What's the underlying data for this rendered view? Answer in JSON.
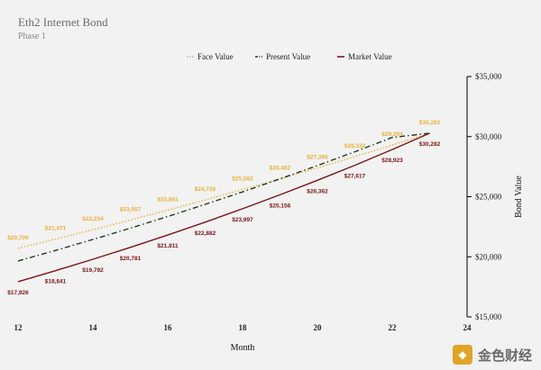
{
  "title": "Eth2 Internet Bond",
  "subtitle": "Phase 1",
  "watermark": "金色财经",
  "chart_data": {
    "type": "line",
    "title": "Eth2 Internet Bond",
    "subtitle": "Phase 1",
    "xlabel": "Month",
    "ylabel": "Bond Value",
    "xlim": [
      12,
      24
    ],
    "ylim": [
      15000,
      35000
    ],
    "x_ticks": [
      "12",
      "14",
      "16",
      "18",
      "20",
      "22",
      "24"
    ],
    "y_ticks": [
      "$15,000",
      "$20,000",
      "$25,000",
      "$30,000",
      "$35,000"
    ],
    "grid": false,
    "legend_position": "top-center",
    "x": [
      12,
      13,
      14,
      15,
      16,
      17,
      18,
      19,
      20,
      21,
      22,
      23
    ],
    "series": [
      {
        "name": "Face Value",
        "color": "#e8b13a",
        "style": "dotted",
        "values": [
          20706,
          21471,
          22254,
          23057,
          23881,
          24726,
          25592,
          26482,
          27395,
          28332,
          29294,
          30282
        ],
        "labels": [
          "$20,706",
          "$21,471",
          "$22,254",
          "$23,057",
          "$23,881",
          "$24,726",
          "$25,592",
          "$26,482",
          "$27,395",
          "$28,332",
          "$29,294",
          "$30,282"
        ]
      },
      {
        "name": "Present Value",
        "color": "#1f3a1f",
        "style": "dashdot",
        "values": [
          19650,
          20530,
          21440,
          22380,
          23350,
          24360,
          25400,
          26480,
          27590,
          28740,
          29930,
          30282
        ],
        "labels": []
      },
      {
        "name": "Market Value",
        "color": "#7a1414",
        "style": "solid",
        "values": [
          17926,
          18841,
          19792,
          20781,
          21811,
          22882,
          23997,
          25156,
          26362,
          27617,
          28923,
          30282
        ],
        "labels": [
          "$17,926",
          "$18,841",
          "$19,792",
          "$20,781",
          "$21,811",
          "$22,882",
          "$23,997",
          "$25,156",
          "$26,362",
          "$27,617",
          "$28,923",
          "$30,282"
        ]
      }
    ]
  }
}
